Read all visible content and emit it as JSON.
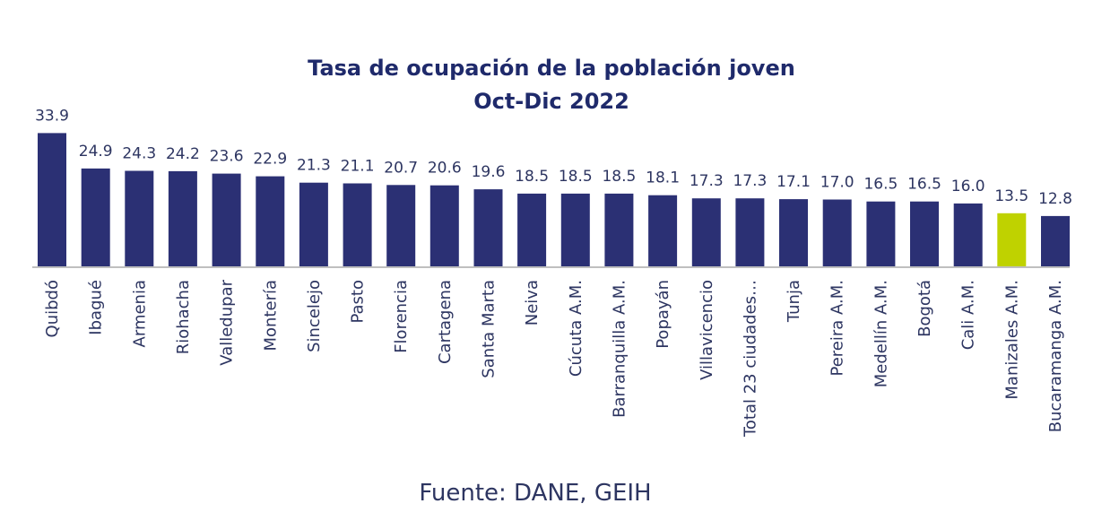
{
  "chart_data": {
    "type": "bar",
    "title": "Tasa de ocupación de la población joven",
    "subtitle": "Oct-Dic 2022",
    "categories": [
      "Quibdó",
      "Ibagué",
      "Armenia",
      "Riohacha",
      "Valledupar",
      "Montería",
      "Sincelejo",
      "Pasto",
      "Florencia",
      "Cartagena",
      "Santa Marta",
      "Neiva",
      "Cúcuta A.M.",
      "Barranquilla A.M.",
      "Popayán",
      "Villavicencio",
      "Total 23 ciudades…",
      "Tunja",
      "Pereira A.M.",
      "Medellín A.M.",
      "Bogotá",
      "Cali A.M.",
      "Manizales A.M.",
      "Bucaramanga A.M."
    ],
    "values": [
      33.9,
      24.9,
      24.3,
      24.2,
      23.6,
      22.9,
      21.3,
      21.1,
      20.7,
      20.6,
      19.6,
      18.5,
      18.5,
      18.5,
      18.1,
      17.3,
      17.3,
      17.1,
      17.0,
      16.5,
      16.5,
      16.0,
      13.5,
      12.8
    ],
    "value_labels": [
      "33.9",
      "24.9",
      "24.3",
      "24.2",
      "23.6",
      "22.9",
      "21.3",
      "21.1",
      "20.7",
      "20.6",
      "19.6",
      "18.5",
      "18.5",
      "18.5",
      "18.1",
      "17.3",
      "17.3",
      "17.1",
      "17.0",
      "16.5",
      "16.5",
      "16.0",
      "13.5",
      "12.8"
    ],
    "highlight_category": "Manizales A.M.",
    "ylim": [
      0,
      34
    ],
    "grid": false,
    "legend": "none",
    "colors": {
      "bar": "#2b3074",
      "highlight": "#bfd200",
      "axis": "#bfbfbf",
      "text": "#2d3561",
      "title": "#1f2a6b"
    }
  },
  "source_text": "Fuente: DANE, GEIH"
}
